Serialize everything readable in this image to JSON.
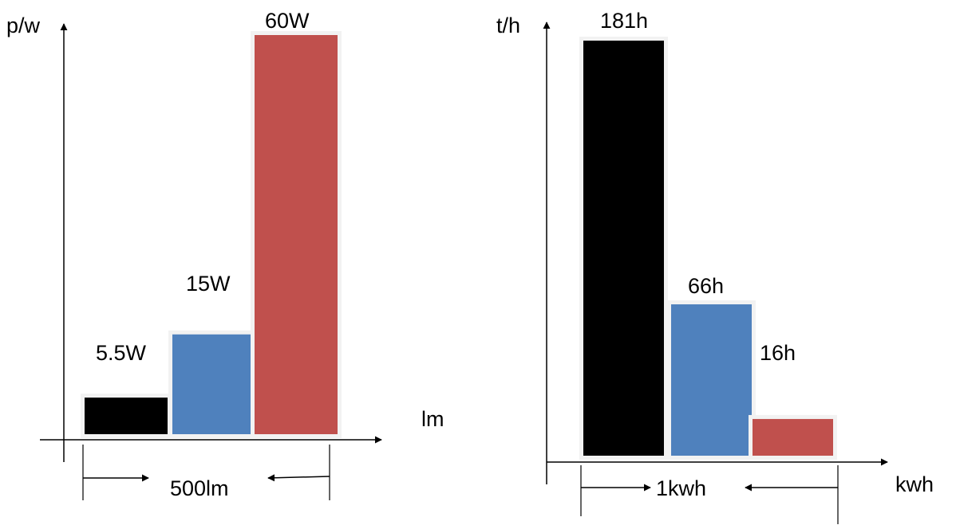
{
  "colors": {
    "black": "#000000",
    "blue": "#4f81bd",
    "red": "#c0504d",
    "frame": "#f2f2f2"
  },
  "chart_data": [
    {
      "type": "bar",
      "ylabel": "p/w",
      "xlabel": "lm",
      "span_label": "500lm",
      "categories": [
        "",
        "",
        ""
      ],
      "series": [
        {
          "values": [
            5.5,
            15,
            60
          ],
          "labels": [
            "5.5W",
            "15W",
            "60W"
          ]
        }
      ],
      "bar_colors": [
        "#000000",
        "#4f81bd",
        "#c0504d"
      ],
      "ylim": [
        0,
        60
      ],
      "grid": false,
      "legend": "none"
    },
    {
      "type": "bar",
      "ylabel": "t/h",
      "xlabel": "kwh",
      "span_label": "1kwh",
      "categories": [
        "",
        "",
        ""
      ],
      "series": [
        {
          "values": [
            181,
            66,
            16
          ],
          "labels": [
            "181h",
            "66h",
            "16h"
          ]
        }
      ],
      "bar_colors": [
        "#000000",
        "#4f81bd",
        "#c0504d"
      ],
      "ylim": [
        0,
        181
      ],
      "grid": false,
      "legend": "none"
    }
  ]
}
